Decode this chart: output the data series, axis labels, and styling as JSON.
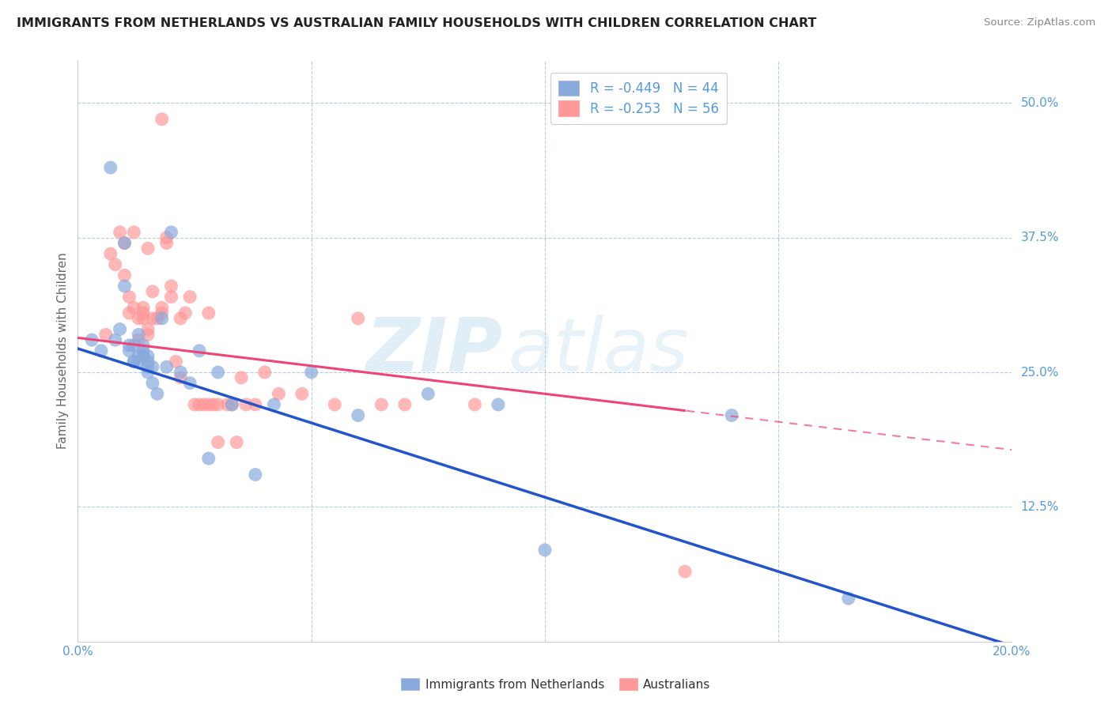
{
  "title": "IMMIGRANTS FROM NETHERLANDS VS AUSTRALIAN FAMILY HOUSEHOLDS WITH CHILDREN CORRELATION CHART",
  "source": "Source: ZipAtlas.com",
  "ylabel": "Family Households with Children",
  "xlim": [
    0.0,
    0.2
  ],
  "ylim": [
    0.0,
    0.54
  ],
  "xtick_positions": [
    0.0,
    0.05,
    0.1,
    0.15,
    0.2
  ],
  "xtick_labels": [
    "0.0%",
    "",
    "",
    "",
    "20.0%"
  ],
  "ytick_labels_right": [
    "12.5%",
    "25.0%",
    "37.5%",
    "50.0%"
  ],
  "ytick_values_right": [
    0.125,
    0.25,
    0.375,
    0.5
  ],
  "legend1_r": "-0.449",
  "legend1_n": "44",
  "legend2_r": "-0.253",
  "legend2_n": "56",
  "blue_color": "#88AADD",
  "pink_color": "#FF9999",
  "blue_line_color": "#2255CC",
  "pink_line_color": "#EE4477",
  "axis_color": "#5599DD",
  "watermark_zip": "ZIP",
  "watermark_atlas": "atlas",
  "blue_x": [
    0.003,
    0.005,
    0.007,
    0.008,
    0.009,
    0.01,
    0.01,
    0.011,
    0.011,
    0.012,
    0.012,
    0.012,
    0.013,
    0.013,
    0.013,
    0.014,
    0.014,
    0.014,
    0.014,
    0.015,
    0.015,
    0.015,
    0.015,
    0.016,
    0.016,
    0.017,
    0.018,
    0.019,
    0.02,
    0.022,
    0.024,
    0.026,
    0.028,
    0.03,
    0.033,
    0.038,
    0.042,
    0.05,
    0.06,
    0.075,
    0.09,
    0.1,
    0.14,
    0.165
  ],
  "blue_y": [
    0.28,
    0.27,
    0.44,
    0.28,
    0.29,
    0.37,
    0.33,
    0.27,
    0.275,
    0.275,
    0.26,
    0.26,
    0.285,
    0.265,
    0.26,
    0.275,
    0.265,
    0.265,
    0.27,
    0.265,
    0.26,
    0.255,
    0.25,
    0.255,
    0.24,
    0.23,
    0.3,
    0.255,
    0.38,
    0.25,
    0.24,
    0.27,
    0.17,
    0.25,
    0.22,
    0.155,
    0.22,
    0.25,
    0.21,
    0.23,
    0.22,
    0.085,
    0.21,
    0.04
  ],
  "pink_x": [
    0.006,
    0.007,
    0.008,
    0.009,
    0.01,
    0.01,
    0.011,
    0.011,
    0.012,
    0.012,
    0.013,
    0.013,
    0.014,
    0.014,
    0.014,
    0.015,
    0.015,
    0.015,
    0.016,
    0.016,
    0.017,
    0.018,
    0.018,
    0.018,
    0.019,
    0.019,
    0.02,
    0.02,
    0.021,
    0.022,
    0.022,
    0.023,
    0.024,
    0.025,
    0.026,
    0.027,
    0.028,
    0.028,
    0.029,
    0.03,
    0.03,
    0.032,
    0.033,
    0.034,
    0.035,
    0.036,
    0.038,
    0.04,
    0.043,
    0.048,
    0.055,
    0.06,
    0.065,
    0.07,
    0.085,
    0.13
  ],
  "pink_y": [
    0.285,
    0.36,
    0.35,
    0.38,
    0.37,
    0.34,
    0.305,
    0.32,
    0.31,
    0.38,
    0.3,
    0.28,
    0.31,
    0.305,
    0.3,
    0.29,
    0.365,
    0.285,
    0.3,
    0.325,
    0.3,
    0.305,
    0.485,
    0.31,
    0.375,
    0.37,
    0.32,
    0.33,
    0.26,
    0.245,
    0.3,
    0.305,
    0.32,
    0.22,
    0.22,
    0.22,
    0.305,
    0.22,
    0.22,
    0.185,
    0.22,
    0.22,
    0.22,
    0.185,
    0.245,
    0.22,
    0.22,
    0.25,
    0.23,
    0.23,
    0.22,
    0.3,
    0.22,
    0.22,
    0.22,
    0.065
  ],
  "blue_line_intercept": 0.272,
  "blue_line_slope": -1.38,
  "pink_line_intercept": 0.282,
  "pink_line_slope": -0.52,
  "pink_line_solid_end": 0.13
}
